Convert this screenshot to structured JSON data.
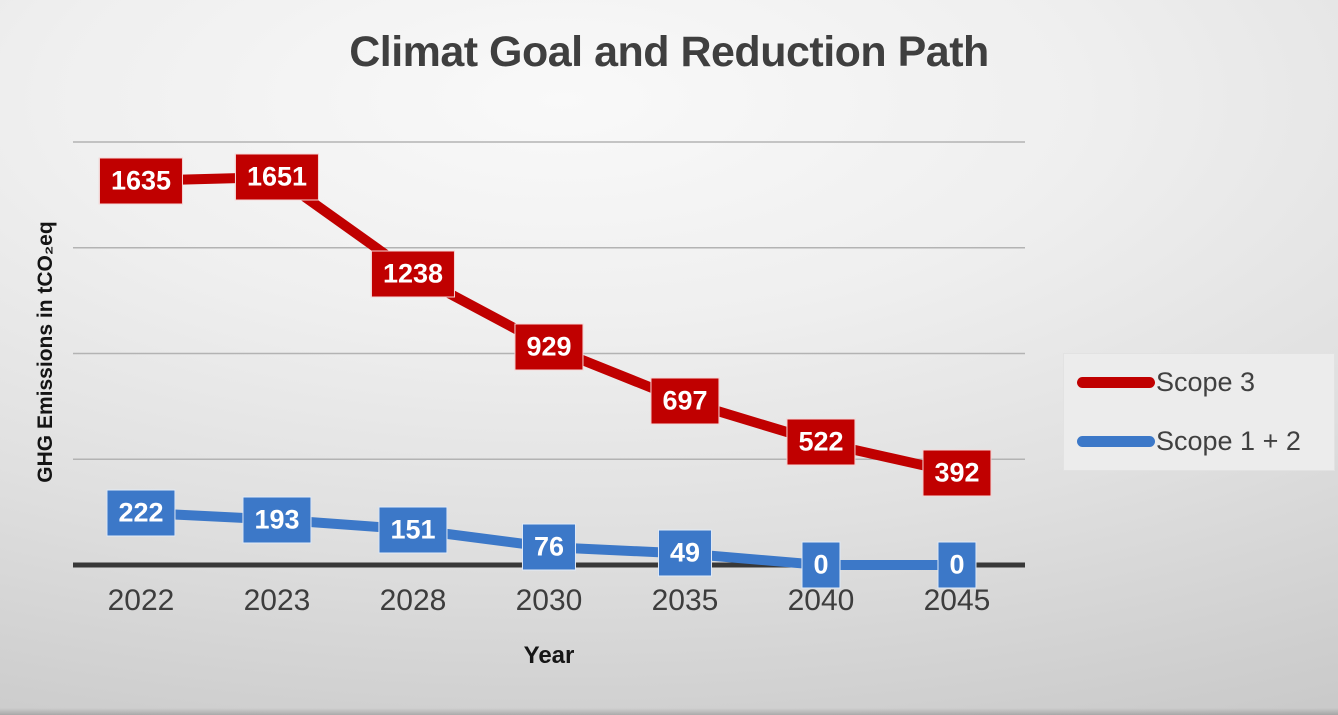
{
  "chart_data": {
    "type": "line",
    "title": "Climat Goal and Reduction Path",
    "xlabel": "Year",
    "ylabel": "GHG Emissions in tCO₂eq",
    "categories": [
      "2022",
      "2023",
      "2028",
      "2030",
      "2035",
      "2040",
      "2045"
    ],
    "series": [
      {
        "name": "Scope 3",
        "color": "#c00000",
        "values": [
          1635,
          1651,
          1238,
          929,
          697,
          522,
          392
        ]
      },
      {
        "name": "Scope 1 + 2",
        "color": "#3c78c8",
        "values": [
          222,
          193,
          151,
          76,
          49,
          0,
          0
        ]
      }
    ],
    "ylim": [
      0,
      1800
    ],
    "gridline_step": 450,
    "grid": true,
    "gridline_color": "#b3b3b3",
    "axis_line_color": "#383838",
    "data_labels": "boxed, centered on points, white bold text",
    "legend_position": "right"
  }
}
